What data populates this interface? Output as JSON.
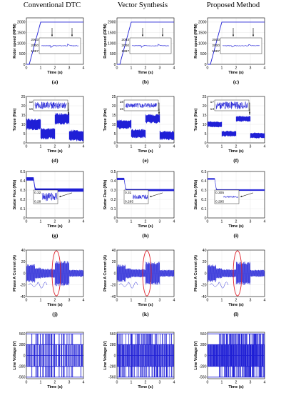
{
  "column_titles": [
    "Conventional DTC",
    "Vector Synthesis",
    "Proposed Method"
  ],
  "colors": {
    "trace": "#1f1fd6",
    "highlight": "#e0202a",
    "axis": "#000000"
  },
  "chart_data": [
    {
      "type": "line",
      "row": "speed",
      "xlabel": "Time (s)",
      "ylabel": "Rotor speed (RPM)",
      "xlim": [
        0,
        4
      ],
      "ylim": [
        0,
        2200
      ],
      "xticks": [
        "0",
        "1",
        "2",
        "3",
        "4"
      ],
      "yticks": [
        "0",
        "500",
        "1000",
        "1500",
        "2000"
      ],
      "series": [
        {
          "x": [
            0,
            0.2,
            1,
            4
          ],
          "y": [
            0,
            0,
            2000,
            2000
          ]
        }
      ],
      "inset_ticks": [
        "2003",
        "2000",
        "1997"
      ],
      "load_change_times_s": [
        1.8,
        3.2
      ],
      "panel_labels": [
        "(a)",
        "(b)",
        "(c)"
      ]
    },
    {
      "type": "line",
      "row": "torque",
      "xlabel": "Time (s)",
      "ylabel": "Torque (Nm)",
      "xlim": [
        0,
        4
      ],
      "ylim": [
        0,
        25
      ],
      "xticks": [
        "0",
        "1",
        "2",
        "3",
        "4"
      ],
      "yticks": [
        "0",
        "5",
        "10",
        "15",
        "20",
        "25"
      ],
      "series": [
        {
          "x": [
            0,
            1,
            1,
            2,
            2,
            3,
            3,
            4
          ],
          "y": [
            10,
            10,
            5,
            5,
            13,
            13,
            4,
            4
          ]
        }
      ],
      "ripple_nm": [
        5,
        4,
        2.5
      ],
      "inset_ticks": [
        [
          "12",
          "16"
        ],
        [
          "18",
          "16"
        ],
        [
          "17",
          "13"
        ]
      ],
      "panel_labels": [
        "(d)",
        "(e)",
        "(f)"
      ]
    },
    {
      "type": "line",
      "row": "flux",
      "xlabel": "Time (s)",
      "ylabel": "Stator Flux (Wb)",
      "xlim": [
        0,
        4
      ],
      "ylim": [
        0,
        0.5
      ],
      "xticks": [
        "0",
        "1",
        "2",
        "3",
        "4"
      ],
      "yticks": [
        "0",
        "0.1",
        "0.2",
        "0.3",
        "0.4",
        "0.5"
      ],
      "series": [
        {
          "x": [
            0,
            0.5,
            0.6,
            4
          ],
          "y": [
            0.42,
            0.42,
            0.3,
            0.3
          ]
        }
      ],
      "ripple_wb": [
        0.025,
        0.012,
        0.006
      ],
      "inset_ticks": [
        [
          "0.32",
          "0.28"
        ],
        [
          "0.31",
          "0.295"
        ],
        [
          "0.305",
          "0.295"
        ]
      ],
      "panel_labels": [
        "(g)",
        "(h)",
        "(i)"
      ]
    },
    {
      "type": "line",
      "row": "current",
      "xlabel": "Time (s)",
      "ylabel": "Phase A Current (A)",
      "xlim": [
        0,
        4
      ],
      "ylim": [
        -40,
        40
      ],
      "xticks": [
        "0",
        "1",
        "2",
        "3",
        "4"
      ],
      "yticks": [
        "-40",
        "-20",
        "0",
        "20",
        "40"
      ],
      "amplitude_a": [
        [
          16,
          10,
          8,
          22,
          6
        ],
        [
          15,
          9,
          7,
          20,
          6
        ],
        [
          15,
          9,
          7,
          20,
          6
        ]
      ],
      "panel_labels": [
        "(j)",
        "(k)",
        "(l)"
      ]
    },
    {
      "type": "line",
      "row": "voltage",
      "xlabel": "Time (s)",
      "ylabel": "Line Voltage (V)",
      "xlim": [
        0,
        4
      ],
      "ylim": [
        -600,
        600
      ],
      "xticks": [
        "0",
        "1",
        "2",
        "3",
        "4"
      ],
      "yticks": [
        "-560",
        "-280",
        "0",
        "280",
        "560"
      ],
      "levels_v": [
        -560,
        -280,
        0,
        280,
        560
      ],
      "panel_labels": [
        "(m)",
        "(n)",
        "(o)"
      ]
    }
  ]
}
